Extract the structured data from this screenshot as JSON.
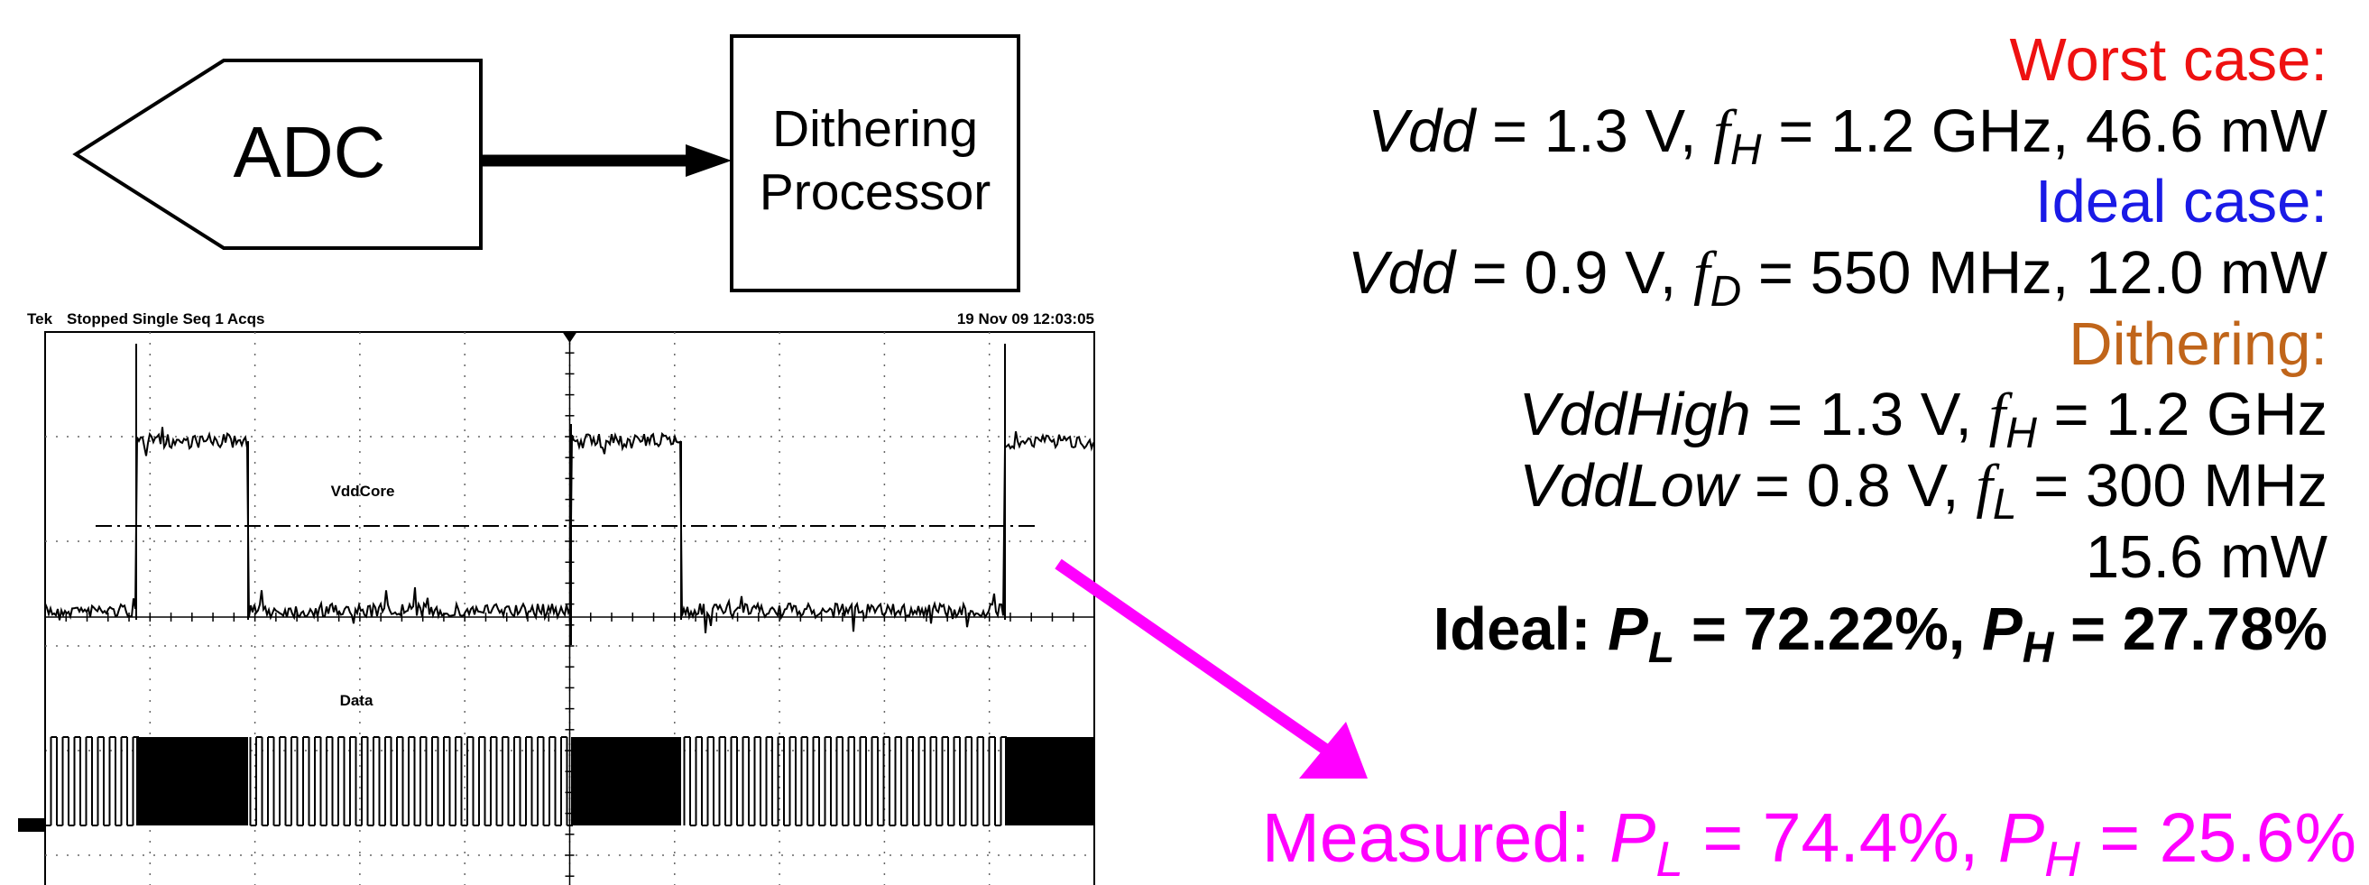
{
  "diagram": {
    "adc": "ADC",
    "processor": [
      "Dithering",
      "Processor"
    ]
  },
  "scope": {
    "brand": "Tek",
    "status": "Stopped Single Seq 1 Acqs",
    "timestamp": "19 Nov 09 12:03:05",
    "traces": [
      "VddCore",
      "Data"
    ]
  },
  "results": {
    "worst_case": {
      "heading": "Worst case:",
      "lines": [
        [
          "Vdd",
          " = 1.3 V, ",
          "f",
          "H",
          " = 1.2 GHz, 46.6 mW"
        ]
      ]
    },
    "ideal_case": {
      "heading": "Ideal case:",
      "lines": [
        [
          "Vdd",
          " = 0.9 V, ",
          "f",
          "D",
          " = 550 MHz, 12.0 mW"
        ]
      ]
    },
    "dithering": {
      "heading": "Dithering:",
      "lines": [
        [
          "VddHigh",
          " = 1.3 V, ",
          "f",
          "H",
          " = 1.2 GHz"
        ],
        [
          "VddLow",
          " = 0.8 V, ",
          "f",
          "L",
          " = 300 MHz"
        ],
        [
          "15.6 mW"
        ]
      ]
    },
    "ideal": [
      "Ideal: ",
      "P",
      "L",
      " = 72.22%, ",
      "P",
      "H",
      " = 27.78%"
    ],
    "measured": [
      "Measured: ",
      "P",
      "L",
      " = 74.4%, ",
      "P",
      "H",
      " = 25.6%"
    ]
  }
}
